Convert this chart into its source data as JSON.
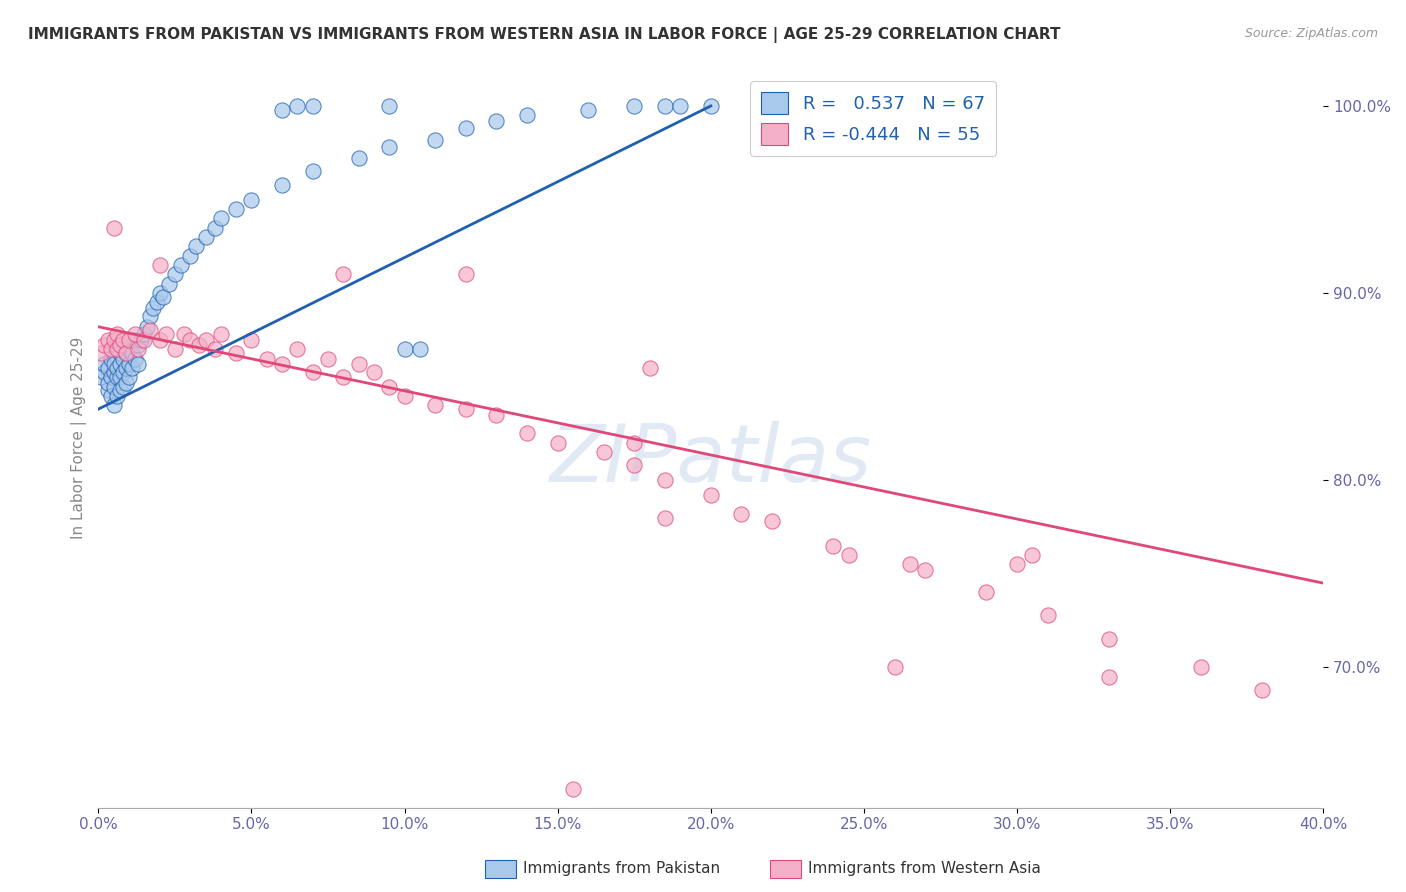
{
  "title": "IMMIGRANTS FROM PAKISTAN VS IMMIGRANTS FROM WESTERN ASIA IN LABOR FORCE | AGE 25-29 CORRELATION CHART",
  "source": "Source: ZipAtlas.com",
  "ylabel": "In Labor Force | Age 25-29",
  "xlim": [
    0.0,
    0.4
  ],
  "ylim": [
    0.625,
    1.02
  ],
  "xticks": [
    0.0,
    0.05,
    0.1,
    0.15,
    0.2,
    0.25,
    0.3,
    0.35,
    0.4
  ],
  "yticks_right": [
    0.7,
    0.8,
    0.9,
    1.0
  ],
  "blue_R": 0.537,
  "blue_N": 67,
  "pink_R": -0.444,
  "pink_N": 55,
  "blue_color": "#A8C8EC",
  "pink_color": "#F4B0C8",
  "blue_line_color": "#2060B0",
  "pink_line_color": "#E04878",
  "watermark": "ZIPatlas",
  "watermark_color": "#C8D8EC",
  "background_color": "#FFFFFF",
  "grid_color": "#DCDCE8",
  "title_color": "#333333",
  "source_color": "#999999",
  "axis_tick_color": "#6666AA",
  "legend_R_color": "#2060B0",
  "blue_x": [
    0.001,
    0.002,
    0.002,
    0.003,
    0.003,
    0.003,
    0.004,
    0.004,
    0.004,
    0.005,
    0.005,
    0.005,
    0.005,
    0.006,
    0.006,
    0.006,
    0.007,
    0.007,
    0.007,
    0.007,
    0.008,
    0.008,
    0.008,
    0.008,
    0.009,
    0.009,
    0.009,
    0.01,
    0.01,
    0.01,
    0.011,
    0.011,
    0.012,
    0.012,
    0.013,
    0.013,
    0.014,
    0.015,
    0.016,
    0.017,
    0.018,
    0.019,
    0.02,
    0.021,
    0.023,
    0.025,
    0.027,
    0.03,
    0.032,
    0.035,
    0.038,
    0.04,
    0.045,
    0.05,
    0.06,
    0.07,
    0.085,
    0.095,
    0.11,
    0.12,
    0.13,
    0.14,
    0.16,
    0.175,
    0.185,
    0.19,
    0.2
  ],
  "blue_y": [
    0.855,
    0.858,
    0.862,
    0.848,
    0.852,
    0.86,
    0.845,
    0.855,
    0.865,
    0.84,
    0.85,
    0.858,
    0.862,
    0.845,
    0.855,
    0.86,
    0.848,
    0.855,
    0.862,
    0.868,
    0.85,
    0.858,
    0.865,
    0.87,
    0.852,
    0.86,
    0.868,
    0.855,
    0.862,
    0.87,
    0.86,
    0.868,
    0.865,
    0.875,
    0.862,
    0.872,
    0.875,
    0.878,
    0.882,
    0.888,
    0.892,
    0.895,
    0.9,
    0.898,
    0.905,
    0.91,
    0.915,
    0.92,
    0.925,
    0.93,
    0.935,
    0.94,
    0.945,
    0.95,
    0.958,
    0.965,
    0.972,
    0.978,
    0.982,
    0.988,
    0.992,
    0.995,
    0.998,
    1.0,
    1.0,
    1.0,
    1.0
  ],
  "pink_x": [
    0.001,
    0.002,
    0.003,
    0.004,
    0.005,
    0.006,
    0.006,
    0.007,
    0.008,
    0.009,
    0.01,
    0.012,
    0.013,
    0.015,
    0.017,
    0.02,
    0.022,
    0.025,
    0.028,
    0.03,
    0.033,
    0.035,
    0.038,
    0.04,
    0.045,
    0.05,
    0.055,
    0.06,
    0.065,
    0.07,
    0.075,
    0.08,
    0.085,
    0.09,
    0.095,
    0.1,
    0.11,
    0.12,
    0.13,
    0.14,
    0.15,
    0.165,
    0.175,
    0.185,
    0.2,
    0.21,
    0.22,
    0.24,
    0.265,
    0.27,
    0.29,
    0.31,
    0.33,
    0.36,
    0.38
  ],
  "pink_y": [
    0.868,
    0.872,
    0.875,
    0.87,
    0.875,
    0.878,
    0.87,
    0.872,
    0.875,
    0.868,
    0.875,
    0.878,
    0.87,
    0.875,
    0.88,
    0.875,
    0.878,
    0.87,
    0.878,
    0.875,
    0.872,
    0.875,
    0.87,
    0.878,
    0.868,
    0.875,
    0.865,
    0.862,
    0.87,
    0.858,
    0.865,
    0.855,
    0.862,
    0.858,
    0.85,
    0.845,
    0.84,
    0.838,
    0.835,
    0.825,
    0.82,
    0.815,
    0.808,
    0.8,
    0.792,
    0.782,
    0.778,
    0.765,
    0.755,
    0.752,
    0.74,
    0.728,
    0.715,
    0.7,
    0.688
  ],
  "blue_trend_x": [
    0.0,
    0.2
  ],
  "blue_trend_y": [
    0.838,
    1.0
  ],
  "pink_trend_x": [
    0.0,
    0.4
  ],
  "pink_trend_y": [
    0.882,
    0.745
  ],
  "extra_blue_high": [
    [
      0.06,
      0.998
    ],
    [
      0.065,
      1.0
    ],
    [
      0.07,
      1.0
    ],
    [
      0.095,
      1.0
    ],
    [
      0.1,
      0.87
    ],
    [
      0.105,
      0.87
    ]
  ],
  "extra_pink_scattered": [
    [
      0.005,
      0.935
    ],
    [
      0.02,
      0.915
    ],
    [
      0.08,
      0.91
    ],
    [
      0.12,
      0.91
    ],
    [
      0.18,
      0.86
    ],
    [
      0.175,
      0.82
    ],
    [
      0.185,
      0.78
    ],
    [
      0.245,
      0.76
    ],
    [
      0.3,
      0.755
    ],
    [
      0.305,
      0.76
    ],
    [
      0.26,
      0.7
    ],
    [
      0.33,
      0.695
    ],
    [
      0.155,
      0.635
    ]
  ]
}
